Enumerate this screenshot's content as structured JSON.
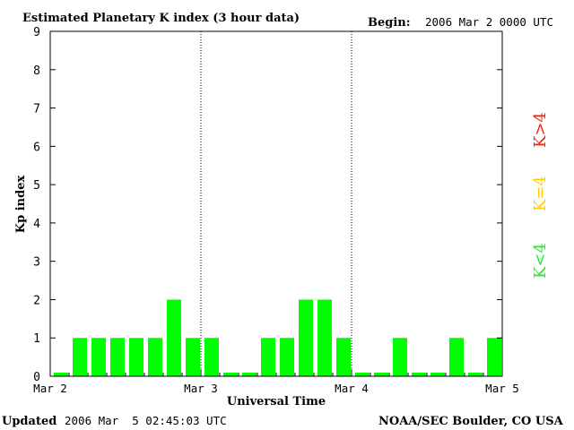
{
  "header": {
    "title": "Estimated Planetary K index (3 hour data)",
    "begin_label": "Begin:",
    "begin_value": "2006 Mar 2 0000 UTC"
  },
  "footer": {
    "updated_label": "Updated",
    "updated_value": "2006 Mar  5 02:45:03 UTC",
    "source": "NOAA/SEC Boulder, CO USA"
  },
  "legend": [
    {
      "label": "K>4",
      "color": "#ff2000"
    },
    {
      "label": "K=4",
      "color": "#ffd000"
    },
    {
      "label": "K<4",
      "color": "#22ee22"
    }
  ],
  "chart_data": {
    "type": "bar",
    "title": "Estimated Planetary K index (3 hour data)",
    "xlabel": "Universal Time",
    "ylabel": "Kp index",
    "ylim": [
      0,
      9
    ],
    "yticks": [
      0,
      1,
      2,
      3,
      4,
      5,
      6,
      7,
      8,
      9
    ],
    "day_labels": [
      "Mar 2",
      "Mar 3",
      "Mar 4",
      "Mar 5"
    ],
    "bar_color": "#00ff00",
    "values": [
      0,
      1,
      1,
      1,
      1,
      1,
      2,
      1,
      1,
      0,
      0,
      1,
      1,
      2,
      2,
      1,
      0,
      0,
      1,
      0,
      0,
      1,
      0,
      1
    ]
  }
}
